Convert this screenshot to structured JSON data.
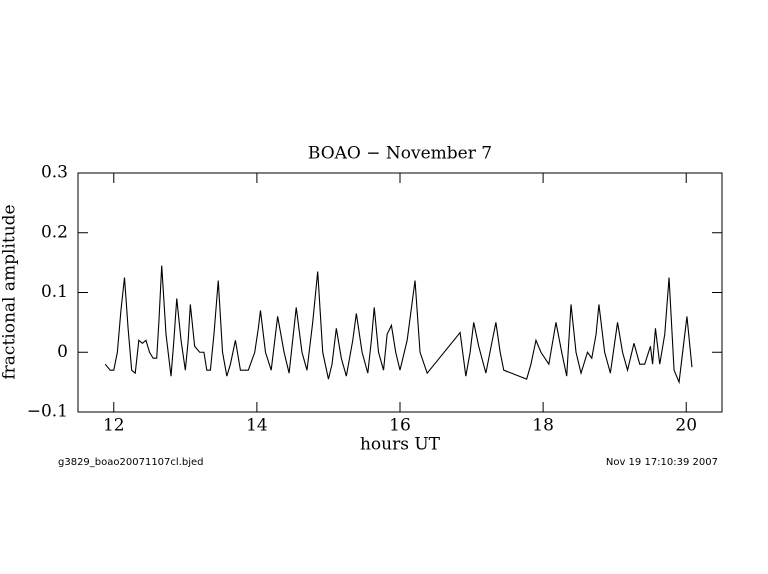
{
  "chart_data": {
    "type": "line",
    "title": "BOAO − November 7",
    "x_label": "hours UT",
    "y_label": "fractional amplitude",
    "footer_left": "g3829_boao20071107cl.bjed",
    "footer_right": "Nov 19 17:10:39 2007",
    "color": "#000000",
    "xlim": [
      11.5,
      20.5
    ],
    "ylim": [
      -0.1,
      0.3
    ],
    "xticks": [
      12,
      14,
      16,
      18,
      20
    ],
    "yticks": [
      {
        "value": -0.1,
        "label": "−0.1"
      },
      0,
      0.1,
      0.2,
      0.3
    ],
    "x": [
      11.88,
      11.95,
      12.0,
      12.05,
      12.1,
      12.15,
      12.2,
      12.25,
      12.3,
      12.35,
      12.4,
      12.45,
      12.5,
      12.55,
      12.6,
      12.63,
      12.67,
      12.73,
      12.8,
      12.84,
      12.88,
      12.94,
      13.0,
      13.04,
      13.07,
      13.13,
      13.2,
      13.26,
      13.3,
      13.35,
      13.4,
      13.46,
      13.52,
      13.58,
      13.63,
      13.7,
      13.77,
      13.88,
      13.97,
      14.02,
      14.05,
      14.12,
      14.2,
      14.25,
      14.29,
      14.38,
      14.45,
      14.5,
      14.55,
      14.63,
      14.7,
      14.78,
      14.85,
      14.92,
      15.0,
      15.05,
      15.11,
      15.18,
      15.25,
      15.34,
      15.39,
      15.47,
      15.55,
      15.6,
      15.64,
      15.7,
      15.77,
      15.82,
      15.88,
      15.94,
      16.0,
      16.1,
      16.21,
      16.28,
      16.38,
      16.84,
      16.92,
      16.98,
      17.03,
      17.1,
      17.2,
      17.29,
      17.34,
      17.4,
      17.45,
      17.77,
      17.83,
      17.9,
      17.97,
      18.08,
      18.18,
      18.26,
      18.33,
      18.39,
      18.46,
      18.53,
      18.62,
      18.68,
      18.74,
      18.78,
      18.86,
      18.94,
      19.04,
      19.11,
      19.18,
      19.27,
      19.35,
      19.42,
      19.5,
      19.53,
      19.57,
      19.63,
      19.7,
      19.76,
      19.83,
      19.9,
      19.95,
      20.01,
      20.08
    ],
    "values": [
      -0.02,
      -0.03,
      -0.03,
      0.0,
      0.07,
      0.125,
      0.04,
      -0.03,
      -0.035,
      0.02,
      0.015,
      0.02,
      0.0,
      -0.01,
      -0.01,
      0.05,
      0.145,
      0.03,
      -0.04,
      0.02,
      0.09,
      0.02,
      -0.03,
      0.02,
      0.08,
      0.01,
      0.0,
      0.0,
      -0.03,
      -0.03,
      0.03,
      0.12,
      0.0,
      -0.04,
      -0.02,
      0.02,
      -0.03,
      -0.03,
      0.0,
      0.04,
      0.07,
      0.0,
      -0.03,
      0.02,
      0.06,
      0.0,
      -0.035,
      0.02,
      0.075,
      0.0,
      -0.03,
      0.05,
      0.135,
      0.0,
      -0.045,
      -0.02,
      0.04,
      -0.01,
      -0.04,
      0.02,
      0.065,
      0.0,
      -0.035,
      0.02,
      0.075,
      0.0,
      -0.03,
      0.03,
      0.045,
      0.0,
      -0.03,
      0.02,
      0.12,
      0.0,
      -0.035,
      0.033,
      -0.04,
      0.0,
      0.05,
      0.01,
      -0.035,
      0.02,
      0.05,
      0.0,
      -0.03,
      -0.045,
      -0.02,
      0.02,
      0.0,
      -0.02,
      0.05,
      0.0,
      -0.04,
      0.08,
      0.0,
      -0.035,
      0.0,
      -0.01,
      0.03,
      0.08,
      0.0,
      -0.035,
      0.05,
      0.0,
      -0.03,
      0.015,
      -0.02,
      -0.02,
      0.01,
      -0.02,
      0.04,
      -0.02,
      0.03,
      0.125,
      -0.03,
      -0.05,
      0.0,
      0.06,
      -0.025
    ]
  }
}
